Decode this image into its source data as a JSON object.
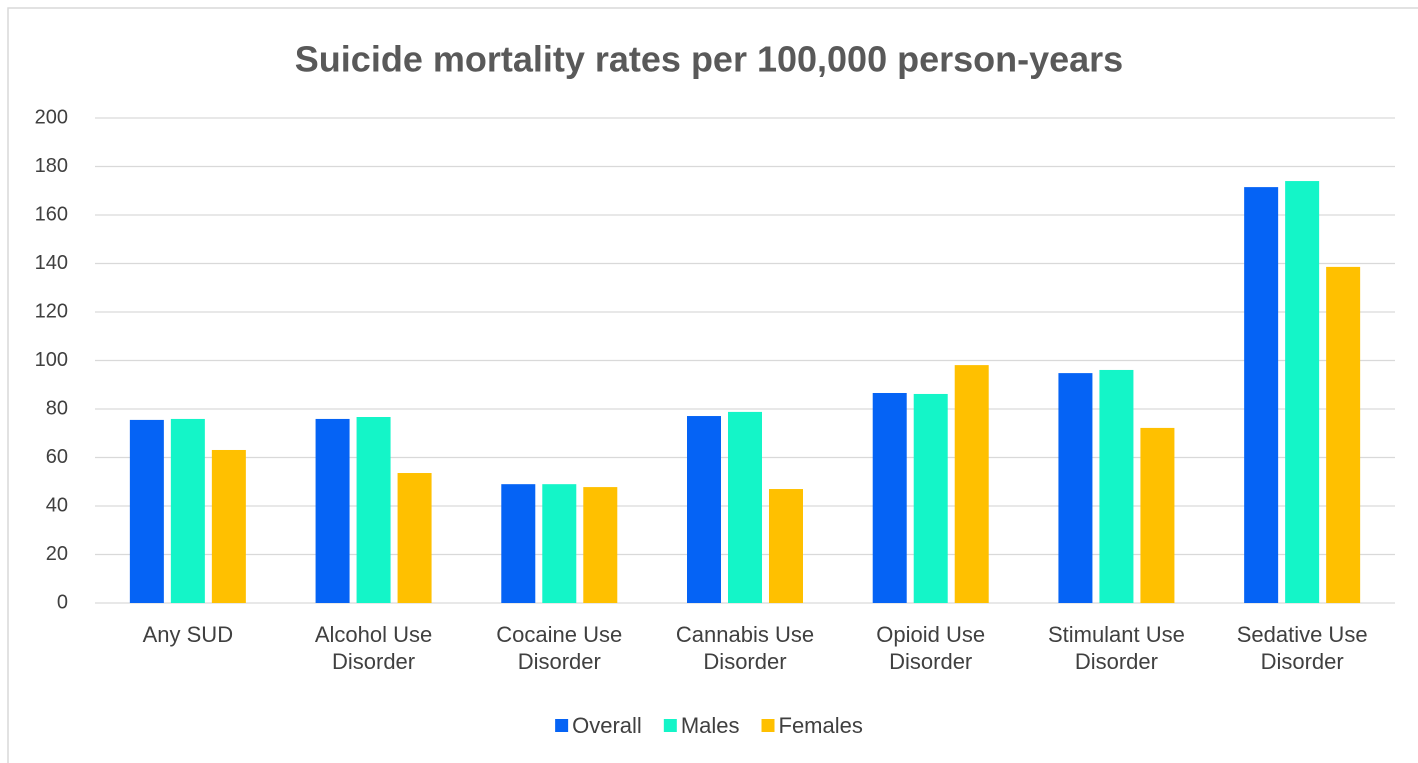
{
  "chart_data": {
    "type": "bar",
    "title": "Suicide mortality rates per 100,000 person-years",
    "categories": [
      "Any SUD",
      "Alcohol Use Disorder",
      "Cocaine Use Disorder",
      "Cannabis Use Disorder",
      "Opioid Use Disorder",
      "Stimulant Use Disorder",
      "Sedative Use Disorder"
    ],
    "series": [
      {
        "name": "Overall",
        "color": "#0563f5",
        "values": [
          75.5,
          75.9,
          49,
          77.1,
          86.6,
          94.8,
          171.5
        ]
      },
      {
        "name": "Males",
        "color": "#14f5c8",
        "values": [
          75.9,
          76.7,
          49,
          78.8,
          86.2,
          96.1,
          174
        ]
      },
      {
        "name": "Females",
        "color": "#ffc000",
        "values": [
          63.1,
          53.6,
          47.8,
          47,
          98.1,
          72.2,
          138.6
        ]
      }
    ],
    "ylim": [
      0,
      200
    ],
    "yticks": [
      0,
      20,
      40,
      60,
      80,
      100,
      120,
      140,
      160,
      180,
      200
    ],
    "grid": true,
    "legend": "bottom"
  }
}
